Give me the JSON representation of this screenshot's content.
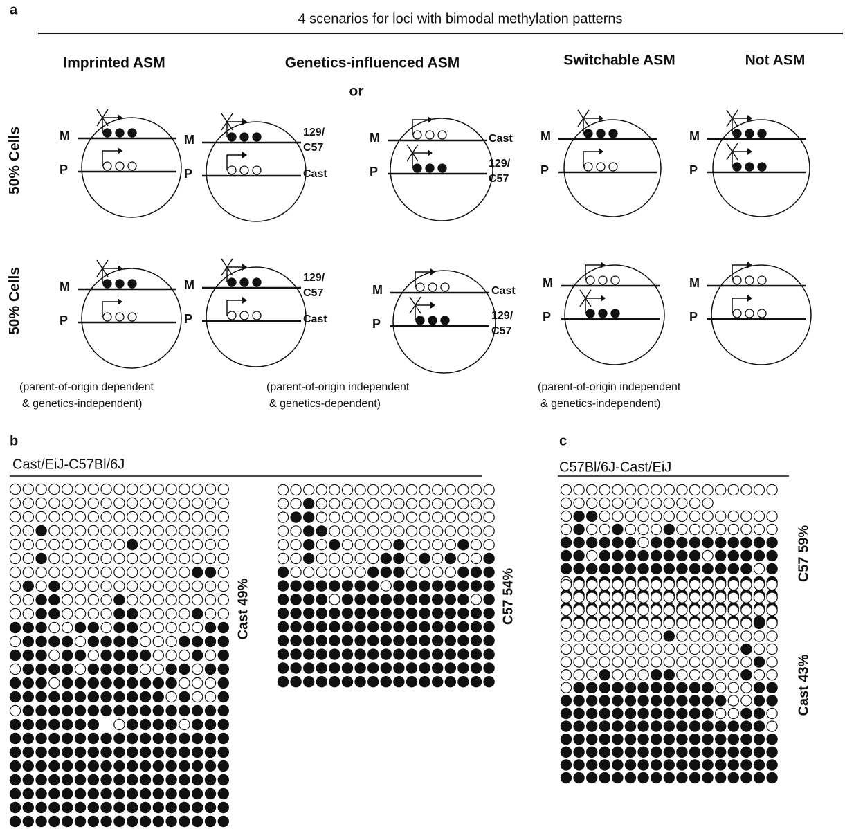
{
  "panel_a": {
    "label": "a",
    "title": "4 scenarios for loci with bimodal methylation patterns",
    "columns": [
      "Imprinted ASM",
      "Genetics-influenced ASM",
      "Switchable ASM",
      "Not ASM"
    ],
    "or": "or",
    "row_label": "50% Cells",
    "maternal": "M",
    "paternal": "P",
    "strain_129": "129/",
    "strain_c57": "C57",
    "strain_cast": "Cast",
    "notes": [
      [
        "(parent-of-origin dependent",
        "& genetics-independent)"
      ],
      [
        "(parent-of-origin independent",
        "& genetics-dependent)"
      ],
      [
        "(parent-of-origin independent",
        "& genetics-independent)"
      ]
    ]
  },
  "panel_b": {
    "label": "b",
    "title": "Cast/EiJ-C57Bl/6J",
    "left_label": "Cast  49%",
    "right_label": "C57  54%"
  },
  "panel_c": {
    "label": "c",
    "title": "C57Bl/6J-Cast/EiJ",
    "top_label": "C57  59%",
    "bottom_label": "Cast  43%"
  }
}
